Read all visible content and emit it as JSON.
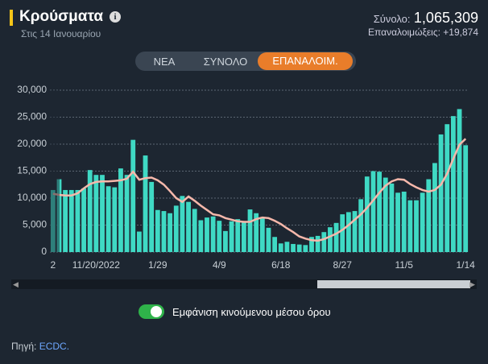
{
  "header": {
    "title": "Κρούσματα",
    "subtitle": "Στις 14 Ιανουαρίου",
    "total_label": "Σύνολο:",
    "total": "1,065,309",
    "reinfections": "Επαναλοιμώξεις: +19,874"
  },
  "tabs": [
    "ΝΕΑ",
    "ΣΥΝΟΛΟ",
    "ΕΠΑΝΑΛΟΙΜ."
  ],
  "toggle_label": "Εμφάνιση κινούμενου μέσου όρου",
  "source": {
    "label": "Πηγή:",
    "link": "ECDC."
  },
  "chart_data": {
    "type": "bar",
    "categories": [
      "2",
      null,
      null,
      null,
      null,
      null,
      null,
      "11/20/2022",
      null,
      null,
      null,
      null,
      null,
      null,
      null,
      null,
      null,
      "1/29",
      null,
      null,
      null,
      null,
      null,
      null,
      null,
      null,
      null,
      "4/9",
      null,
      null,
      null,
      null,
      null,
      null,
      null,
      null,
      null,
      "6/18",
      null,
      null,
      null,
      null,
      null,
      null,
      null,
      null,
      null,
      "8/27",
      null,
      null,
      null,
      null,
      null,
      null,
      null,
      null,
      null,
      "11/5",
      null,
      null,
      null,
      null,
      null,
      null,
      null,
      null,
      null,
      "1/14"
    ],
    "series": [
      {
        "type": "bar",
        "color": "#3fd9c4",
        "values": [
          11500,
          13500,
          11500,
          11500,
          11500,
          11800,
          15200,
          14300,
          14300,
          12200,
          12000,
          15500,
          14300,
          20800,
          3800,
          17900,
          13000,
          7800,
          7600,
          7200,
          8600,
          10400,
          9300,
          8000,
          5900,
          6400,
          6600,
          5800,
          3900,
          5700,
          6100,
          5700,
          7900,
          7200,
          6400,
          4500,
          2800,
          1600,
          1900,
          1500,
          1400,
          1300,
          2800,
          3000,
          3700,
          4600,
          5400,
          7000,
          7400,
          7600,
          9800,
          14000,
          15000,
          14900,
          13800,
          12700,
          11000,
          11200,
          9600,
          9600,
          11000,
          13500,
          16500,
          21800,
          23700,
          25200,
          26500,
          19800
        ]
      },
      {
        "type": "line",
        "color": "#f6b8ab",
        "values": [
          10800,
          10600,
          10500,
          10500,
          10900,
          11800,
          12600,
          13000,
          13100,
          13100,
          13200,
          13300,
          13600,
          14900,
          13400,
          13700,
          13800,
          13300,
          12500,
          11300,
          10000,
          9300,
          10300,
          9500,
          8600,
          7800,
          7000,
          6800,
          6300,
          6000,
          5700,
          5600,
          5600,
          6100,
          6400,
          6300,
          5800,
          5200,
          4400,
          3700,
          2900,
          2500,
          2200,
          2100,
          2400,
          2900,
          3400,
          4100,
          5000,
          6000,
          7000,
          8200,
          9600,
          11000,
          12300,
          13100,
          13500,
          13400,
          12600,
          12000,
          11500,
          11200,
          11500,
          12500,
          14500,
          17300,
          19900,
          21000
        ]
      }
    ],
    "ylim": [
      0,
      30000
    ],
    "yticks": [
      0,
      {
        "value": 5000,
        "label": "5,000"
      },
      {
        "value": 10000,
        "label": "10,000"
      },
      {
        "value": 15000,
        "label": "15,000"
      },
      {
        "value": 20000,
        "label": "20,000"
      },
      {
        "value": 25000,
        "label": "25,000"
      },
      {
        "value": 30000,
        "label": "30,000"
      }
    ],
    "grid": true
  }
}
